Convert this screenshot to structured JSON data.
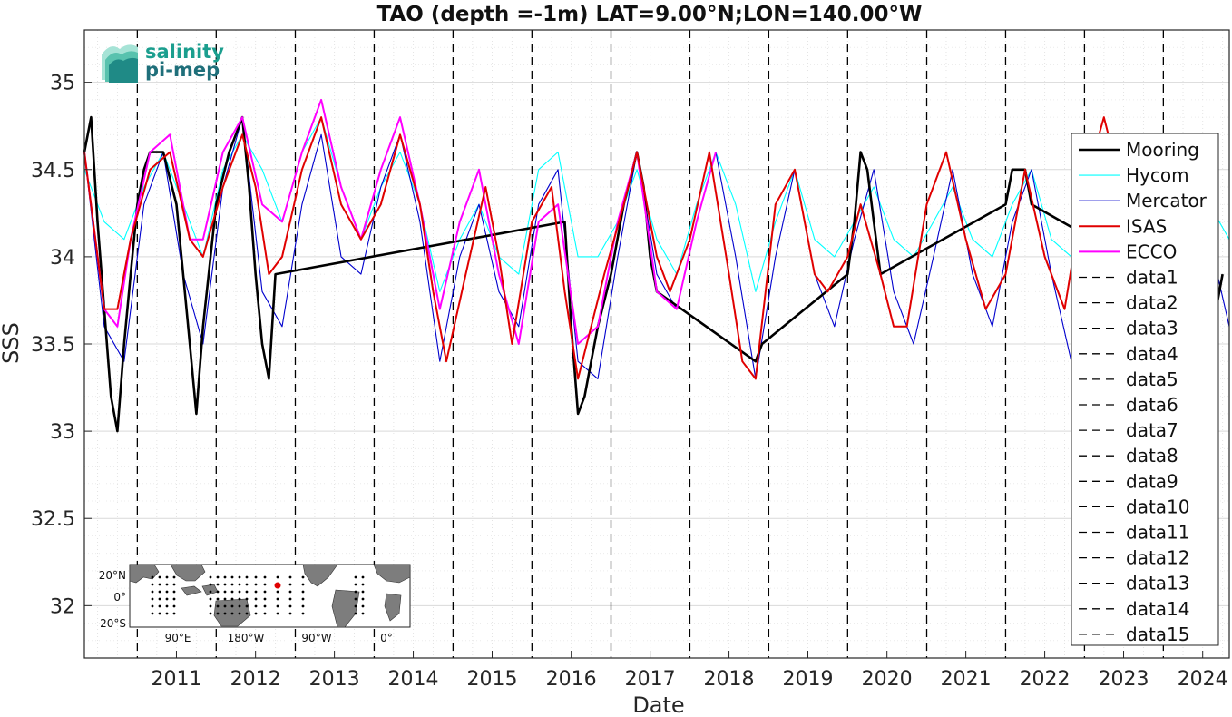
{
  "chart_data": {
    "type": "line",
    "title": "TAO (depth =-1m) LAT=9.00°N;LON=140.00°W",
    "xlabel": "Date",
    "ylabel": "SSS",
    "xlim": [
      "2010-05-01",
      "2024-11-01"
    ],
    "ylim": [
      31.7,
      35.3
    ],
    "x_ticks": [
      "2011",
      "2012",
      "2013",
      "2014",
      "2015",
      "2016",
      "2017",
      "2018",
      "2019",
      "2020",
      "2021",
      "2022",
      "2023",
      "2024"
    ],
    "y_ticks": [
      "32",
      "32.5",
      "33",
      "33.5",
      "34",
      "34.5",
      "35"
    ],
    "grid": true,
    "legend_position": "right",
    "year_boundaries": [
      "2011-01-01",
      "2012-01-01",
      "2013-01-01",
      "2014-01-01",
      "2015-01-01",
      "2016-01-01",
      "2017-01-01",
      "2018-01-01",
      "2019-01-01",
      "2020-01-01",
      "2021-01-01",
      "2022-01-01",
      "2023-01-01",
      "2024-01-01"
    ],
    "series": [
      {
        "name": "Mooring",
        "color": "#000000",
        "x": [
          "2010-05-01",
          "2010-06-01",
          "2010-07-01",
          "2010-08-01",
          "2010-09-01",
          "2010-10-01",
          "2010-11-01",
          "2010-12-01",
          "2011-01-01",
          "2011-02-01",
          "2011-03-01",
          "2011-05-01",
          "2011-07-01",
          "2011-08-01",
          "2011-09-01",
          "2011-10-01",
          "2011-11-01",
          "2012-01-01",
          "2012-03-01",
          "2012-05-01",
          "2012-06-01",
          "2012-07-01",
          "2012-08-01",
          "2012-09-01",
          "2012-10-01",
          "2016-06-01",
          "2016-07-01",
          "2016-08-01",
          "2016-09-01",
          "2016-10-01",
          "2016-11-01",
          "2017-01-01",
          "2017-03-01",
          "2017-05-01",
          "2017-06-01",
          "2017-07-01",
          "2017-08-01",
          "2018-11-01",
          "2018-12-01",
          "2020-01-01",
          "2020-02-01",
          "2020-03-01",
          "2020-04-01",
          "2020-05-01",
          "2020-06-01",
          "2022-01-01",
          "2022-02-01",
          "2022-04-01",
          "2022-05-01",
          "2024-09-01",
          "2024-10-01"
        ],
        "y": [
          34.6,
          34.8,
          34.2,
          33.7,
          33.2,
          33.0,
          33.5,
          33.9,
          34.3,
          34.5,
          34.6,
          34.6,
          34.3,
          33.9,
          33.5,
          33.1,
          33.6,
          34.3,
          34.6,
          34.8,
          34.4,
          33.9,
          33.5,
          33.3,
          33.9,
          34.2,
          33.6,
          33.1,
          33.2,
          33.4,
          33.6,
          33.9,
          34.3,
          34.6,
          34.4,
          34.0,
          33.8,
          33.4,
          33.5,
          33.9,
          34.2,
          34.6,
          34.5,
          34.2,
          33.9,
          34.3,
          34.5,
          34.5,
          34.3,
          33.7,
          33.9
        ]
      },
      {
        "name": "Hycom",
        "color": "#00ffff",
        "x": [
          "2010-05-01",
          "2010-08-01",
          "2010-11-01",
          "2011-02-01",
          "2011-05-01",
          "2011-08-01",
          "2011-11-01",
          "2012-02-01",
          "2012-05-01",
          "2012-08-01",
          "2012-11-01",
          "2013-02-01",
          "2013-05-01",
          "2013-08-01",
          "2013-11-01",
          "2014-02-01",
          "2014-05-01",
          "2014-08-01",
          "2014-11-01",
          "2015-02-01",
          "2015-05-01",
          "2015-08-01",
          "2015-11-01",
          "2016-02-01",
          "2016-05-01",
          "2016-08-01",
          "2016-11-01",
          "2017-02-01",
          "2017-05-01",
          "2017-08-01",
          "2017-11-01",
          "2018-02-01",
          "2018-05-01",
          "2018-08-01",
          "2018-11-01",
          "2019-02-01",
          "2019-05-01",
          "2019-08-01",
          "2019-11-01",
          "2020-02-01",
          "2020-05-01",
          "2020-08-01",
          "2020-11-01",
          "2021-02-01",
          "2021-05-01",
          "2021-08-01",
          "2021-11-01",
          "2022-02-01",
          "2022-05-01",
          "2022-08-01",
          "2022-11-01",
          "2023-02-01",
          "2023-05-01",
          "2023-08-01",
          "2023-11-01",
          "2024-02-01",
          "2024-05-01",
          "2024-08-01",
          "2024-11-01"
        ],
        "y": [
          34.5,
          34.2,
          34.1,
          34.4,
          34.6,
          34.3,
          34.0,
          34.5,
          34.7,
          34.5,
          34.2,
          34.6,
          34.8,
          34.4,
          34.1,
          34.4,
          34.6,
          34.3,
          33.8,
          34.1,
          34.3,
          34.0,
          33.9,
          34.5,
          34.6,
          34.0,
          34.0,
          34.2,
          34.5,
          34.1,
          33.9,
          34.3,
          34.6,
          34.3,
          33.8,
          34.2,
          34.5,
          34.1,
          34.0,
          34.2,
          34.4,
          34.1,
          34.0,
          34.2,
          34.4,
          34.1,
          34.0,
          34.3,
          34.5,
          34.1,
          34.0,
          34.6,
          34.7,
          34.4,
          34.2,
          34.5,
          34.6,
          34.3,
          34.1
        ]
      },
      {
        "name": "Mercator",
        "color": "#0000cd",
        "x": [
          "2010-05-01",
          "2010-08-01",
          "2010-11-01",
          "2011-02-01",
          "2011-05-01",
          "2011-08-01",
          "2011-11-01",
          "2012-02-01",
          "2012-05-01",
          "2012-08-01",
          "2012-11-01",
          "2013-02-01",
          "2013-05-01",
          "2013-08-01",
          "2013-11-01",
          "2014-02-01",
          "2014-05-01",
          "2014-08-01",
          "2014-11-01",
          "2015-02-01",
          "2015-05-01",
          "2015-08-01",
          "2015-11-01",
          "2016-02-01",
          "2016-05-01",
          "2016-08-01",
          "2016-11-01",
          "2017-02-01",
          "2017-05-01",
          "2017-08-01",
          "2017-11-01",
          "2018-02-01",
          "2018-05-01",
          "2018-08-01",
          "2018-11-01",
          "2019-02-01",
          "2019-05-01",
          "2019-08-01",
          "2019-11-01",
          "2020-02-01",
          "2020-05-01",
          "2020-08-01",
          "2020-11-01",
          "2021-02-01",
          "2021-05-01",
          "2021-08-01",
          "2021-11-01",
          "2022-02-01",
          "2022-05-01",
          "2022-08-01",
          "2022-11-01",
          "2023-02-01",
          "2023-05-01",
          "2023-08-01",
          "2023-11-01",
          "2024-02-01",
          "2024-05-01",
          "2024-08-01",
          "2024-11-01"
        ],
        "y": [
          34.6,
          33.6,
          33.4,
          34.3,
          34.6,
          33.9,
          33.5,
          34.4,
          34.8,
          33.8,
          33.6,
          34.3,
          34.7,
          34.0,
          33.9,
          34.4,
          34.7,
          34.2,
          33.4,
          34.0,
          34.3,
          33.8,
          33.6,
          34.3,
          34.5,
          33.4,
          33.3,
          34.0,
          34.6,
          33.9,
          33.7,
          34.2,
          34.6,
          34.0,
          33.3,
          34.0,
          34.5,
          33.9,
          33.6,
          34.1,
          34.5,
          33.8,
          33.5,
          34.0,
          34.5,
          33.9,
          33.6,
          34.2,
          34.5,
          33.9,
          33.4,
          34.4,
          34.7,
          34.2,
          33.9,
          34.3,
          34.6,
          34.1,
          33.6
        ]
      },
      {
        "name": "ISAS",
        "color": "#e00000",
        "x": [
          "2010-05-01",
          "2010-08-01",
          "2010-10-01",
          "2010-12-01",
          "2011-03-01",
          "2011-06-01",
          "2011-09-01",
          "2011-11-01",
          "2012-02-01",
          "2012-05-01",
          "2012-07-01",
          "2012-09-01",
          "2012-11-01",
          "2013-02-01",
          "2013-05-01",
          "2013-08-01",
          "2013-11-01",
          "2014-02-01",
          "2014-05-01",
          "2014-08-01",
          "2014-10-01",
          "2014-12-01",
          "2015-03-01",
          "2015-06-01",
          "2015-08-01",
          "2015-10-01",
          "2016-01-01",
          "2016-04-01",
          "2016-06-01",
          "2016-08-01",
          "2016-10-01",
          "2016-12-01",
          "2017-03-01",
          "2017-05-01",
          "2017-08-01",
          "2017-10-01",
          "2018-01-01",
          "2018-04-01",
          "2018-07-01",
          "2018-09-01",
          "2018-11-01",
          "2019-02-01",
          "2019-05-01",
          "2019-08-01",
          "2019-10-01",
          "2020-01-01",
          "2020-03-01",
          "2020-06-01",
          "2020-08-01",
          "2020-10-01",
          "2021-01-01",
          "2021-04-01",
          "2021-07-01",
          "2021-10-01",
          "2022-01-01",
          "2022-04-01",
          "2022-07-01",
          "2022-10-01",
          "2023-01-01",
          "2023-04-01",
          "2023-06-01"
        ],
        "y": [
          34.6,
          33.7,
          33.7,
          34.1,
          34.5,
          34.6,
          34.1,
          34.0,
          34.4,
          34.7,
          34.4,
          33.9,
          34.0,
          34.5,
          34.8,
          34.3,
          34.1,
          34.3,
          34.7,
          34.3,
          33.8,
          33.4,
          33.9,
          34.4,
          34.0,
          33.5,
          34.2,
          34.4,
          33.8,
          33.3,
          33.6,
          33.9,
          34.3,
          34.6,
          34.0,
          33.8,
          34.1,
          34.6,
          33.9,
          33.4,
          33.3,
          34.3,
          34.5,
          33.9,
          33.8,
          34.0,
          34.3,
          33.9,
          33.6,
          33.6,
          34.3,
          34.6,
          34.1,
          33.7,
          33.9,
          34.5,
          34.0,
          33.7,
          34.4,
          34.8,
          34.5
        ]
      },
      {
        "name": "ECCO",
        "color": "#ff00ff",
        "x": [
          "2010-05-01",
          "2010-08-01",
          "2010-10-01",
          "2010-12-01",
          "2011-03-01",
          "2011-06-01",
          "2011-09-01",
          "2011-11-01",
          "2012-02-01",
          "2012-05-01",
          "2012-08-01",
          "2012-11-01",
          "2013-02-01",
          "2013-05-01",
          "2013-08-01",
          "2013-11-01",
          "2014-02-01",
          "2014-05-01",
          "2014-08-01",
          "2014-11-01",
          "2015-02-01",
          "2015-05-01",
          "2015-08-01",
          "2015-11-01",
          "2016-02-01",
          "2016-05-01",
          "2016-08-01",
          "2016-11-01",
          "2017-02-01",
          "2017-05-01",
          "2017-08-01",
          "2017-11-01",
          "2018-02-01",
          "2018-05-01"
        ],
        "y": [
          34.6,
          33.7,
          33.6,
          34.1,
          34.6,
          34.7,
          34.1,
          34.1,
          34.6,
          34.8,
          34.3,
          34.2,
          34.6,
          34.9,
          34.4,
          34.1,
          34.5,
          34.8,
          34.3,
          33.7,
          34.2,
          34.5,
          33.9,
          33.5,
          34.2,
          34.3,
          33.5,
          33.6,
          34.2,
          34.6,
          33.8,
          33.7,
          34.2,
          34.6
        ]
      },
      {
        "name": "data1",
        "color": "#000000"
      },
      {
        "name": "data2",
        "color": "#000000"
      },
      {
        "name": "data3",
        "color": "#000000"
      },
      {
        "name": "data4",
        "color": "#000000"
      },
      {
        "name": "data5",
        "color": "#000000"
      },
      {
        "name": "data6",
        "color": "#000000"
      },
      {
        "name": "data7",
        "color": "#000000"
      },
      {
        "name": "data8",
        "color": "#000000"
      },
      {
        "name": "data9",
        "color": "#000000"
      },
      {
        "name": "data10",
        "color": "#000000"
      },
      {
        "name": "data11",
        "color": "#000000"
      },
      {
        "name": "data12",
        "color": "#000000"
      },
      {
        "name": "data13",
        "color": "#000000"
      },
      {
        "name": "data14",
        "color": "#000000"
      },
      {
        "name": "data15",
        "color": "#000000"
      }
    ]
  },
  "logo": {
    "line1": "salinity",
    "line2": "pi-mep"
  },
  "inset_map": {
    "lat_labels": [
      "20°N",
      "0°",
      "20°S"
    ],
    "lon_labels": [
      "90°E",
      "180°W",
      "90°W",
      "0°"
    ],
    "highlight_color": "#e00000"
  }
}
